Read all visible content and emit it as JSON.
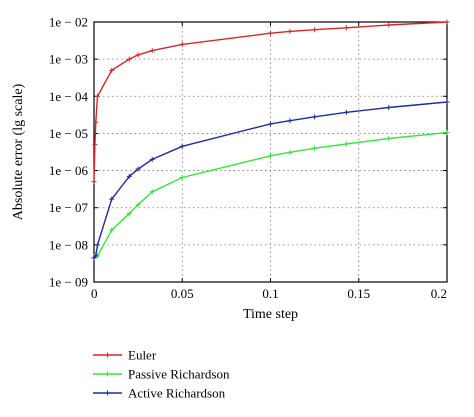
{
  "chart_data": {
    "type": "line",
    "xlabel": "Time step",
    "ylabel": "Absolute error (lg scale)",
    "xlim": [
      0,
      0.2
    ],
    "ylim": [
      1e-09,
      0.01
    ],
    "yscale": "log",
    "grid": true,
    "legend_position": "bottom-left, below plot",
    "x_ticks": [
      {
        "value": 0,
        "label": "0"
      },
      {
        "value": 0.05,
        "label": "0.05"
      },
      {
        "value": 0.1,
        "label": "0.1"
      },
      {
        "value": 0.15,
        "label": "0.15"
      },
      {
        "value": 0.2,
        "label": "0.2"
      }
    ],
    "y_ticks": [
      {
        "value": 1e-09,
        "label": "1e − 09"
      },
      {
        "value": 1e-08,
        "label": "1e − 08"
      },
      {
        "value": 1e-07,
        "label": "1e − 07"
      },
      {
        "value": 1e-06,
        "label": "1e − 06"
      },
      {
        "value": 1e-05,
        "label": "1e − 05"
      },
      {
        "value": 0.0001,
        "label": "1e − 04"
      },
      {
        "value": 0.001,
        "label": "1e − 03"
      },
      {
        "value": 0.01,
        "label": "1e − 02"
      }
    ],
    "series": [
      {
        "name": "Euler",
        "color": "#d62728",
        "points": [
          [
            0,
            5e-07
          ],
          [
            0.0005,
            5e-06
          ],
          [
            0.001,
            2e-05
          ],
          [
            0.002,
            0.0001
          ],
          [
            0.01,
            0.0005
          ],
          [
            0.02,
            0.001
          ],
          [
            0.025,
            0.0013
          ],
          [
            0.033,
            0.0017
          ],
          [
            0.05,
            0.0025
          ],
          [
            0.1,
            0.005
          ],
          [
            0.111,
            0.0056
          ],
          [
            0.125,
            0.0062
          ],
          [
            0.143,
            0.007
          ],
          [
            0.167,
            0.0083
          ],
          [
            0.2,
            0.01
          ]
        ]
      },
      {
        "name": "Passive Richardson",
        "color": "#3ce23c",
        "points": [
          [
            0,
            4.5e-09
          ],
          [
            0.001,
            5.5e-09
          ],
          [
            0.002,
            5e-09
          ],
          [
            0.01,
            2.5e-08
          ],
          [
            0.02,
            7e-08
          ],
          [
            0.025,
            1.2e-07
          ],
          [
            0.033,
            2.7e-07
          ],
          [
            0.05,
            6.5e-07
          ],
          [
            0.1,
            2.5e-06
          ],
          [
            0.111,
            3.1e-06
          ],
          [
            0.125,
            4e-06
          ],
          [
            0.143,
            5.2e-06
          ],
          [
            0.167,
            7.3e-06
          ],
          [
            0.2,
            1.05e-05
          ]
        ]
      },
      {
        "name": "Active Richardson",
        "color": "#1f2ca0",
        "points": [
          [
            0,
            4.5e-09
          ],
          [
            0.001,
            5e-09
          ],
          [
            0.002,
            1e-08
          ],
          [
            0.01,
            1.7e-07
          ],
          [
            0.02,
            7e-07
          ],
          [
            0.025,
            1.1e-06
          ],
          [
            0.033,
            2e-06
          ],
          [
            0.05,
            4.5e-06
          ],
          [
            0.1,
            1.8e-05
          ],
          [
            0.111,
            2.2e-05
          ],
          [
            0.125,
            2.8e-05
          ],
          [
            0.143,
            3.7e-05
          ],
          [
            0.167,
            5e-05
          ],
          [
            0.2,
            7e-05
          ]
        ]
      }
    ]
  }
}
